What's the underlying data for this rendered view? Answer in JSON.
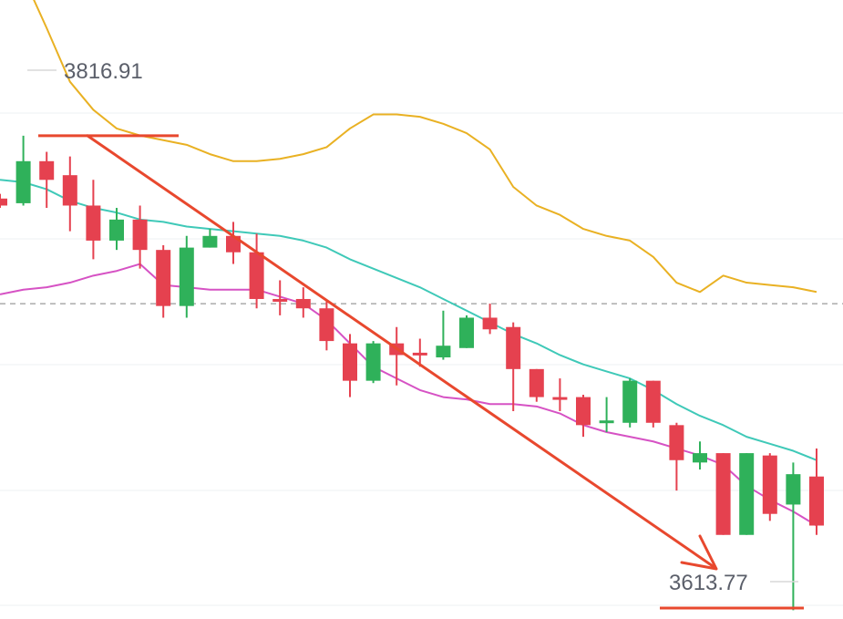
{
  "colors": {
    "up": "#2fb15a",
    "down": "#e5414f",
    "upper_band": "#e9b123",
    "middle_band": "#3fc9b8",
    "lower_band": "#d652c4",
    "annotation": "#e8482e",
    "grid": "#eef0f3",
    "current_price_line": "#9a9a9a",
    "label_text": "#5b5f6a"
  },
  "annotations": {
    "high_label": "3816.91",
    "low_label": "3613.77"
  },
  "chart_data": {
    "type": "candlestick",
    "title": "",
    "xlabel": "",
    "ylabel": "",
    "ylim": [
      3610,
      3875
    ],
    "grid": true,
    "current_price": 3745,
    "high": 3816.91,
    "low": 3613.77,
    "candles": [
      {
        "open": 3790,
        "close": 3787,
        "high": 3792,
        "low": 3786
      },
      {
        "open": 3788,
        "close": 3806,
        "high": 3816.91,
        "low": 3787
      },
      {
        "open": 3806,
        "close": 3798,
        "high": 3810,
        "low": 3786
      },
      {
        "open": 3800,
        "close": 3787,
        "high": 3808,
        "low": 3776
      },
      {
        "open": 3787,
        "close": 3772,
        "high": 3798,
        "low": 3764
      },
      {
        "open": 3772,
        "close": 3781,
        "high": 3786,
        "low": 3768
      },
      {
        "open": 3781,
        "close": 3768,
        "high": 3787,
        "low": 3760
      },
      {
        "open": 3768,
        "close": 3744,
        "high": 3770,
        "low": 3739
      },
      {
        "open": 3744,
        "close": 3769,
        "high": 3774,
        "low": 3739
      },
      {
        "open": 3769,
        "close": 3774,
        "high": 3777,
        "low": 3769
      },
      {
        "open": 3774,
        "close": 3767,
        "high": 3780,
        "low": 3762
      },
      {
        "open": 3767,
        "close": 3747,
        "high": 3775,
        "low": 3743
      },
      {
        "open": 3747,
        "close": 3746,
        "high": 3755,
        "low": 3740
      },
      {
        "open": 3747,
        "close": 3743,
        "high": 3752,
        "low": 3739
      },
      {
        "open": 3743,
        "close": 3729,
        "high": 3746,
        "low": 3725
      },
      {
        "open": 3728,
        "close": 3712,
        "high": 3732,
        "low": 3705
      },
      {
        "open": 3712,
        "close": 3728,
        "high": 3729,
        "low": 3711
      },
      {
        "open": 3728,
        "close": 3723,
        "high": 3735,
        "low": 3710
      },
      {
        "open": 3724,
        "close": 3723,
        "high": 3730,
        "low": 3718
      },
      {
        "open": 3722,
        "close": 3727,
        "high": 3742,
        "low": 3721
      },
      {
        "open": 3726,
        "close": 3739,
        "high": 3740,
        "low": 3726
      },
      {
        "open": 3739,
        "close": 3734,
        "high": 3745,
        "low": 3732
      },
      {
        "open": 3735,
        "close": 3717,
        "high": 3737,
        "low": 3699
      },
      {
        "open": 3717,
        "close": 3705,
        "high": 3717,
        "low": 3703
      },
      {
        "open": 3705,
        "close": 3704,
        "high": 3713,
        "low": 3699
      },
      {
        "open": 3705,
        "close": 3693,
        "high": 3706,
        "low": 3688
      },
      {
        "open": 3694,
        "close": 3695,
        "high": 3705,
        "low": 3690
      },
      {
        "open": 3694,
        "close": 3712,
        "high": 3713,
        "low": 3692
      },
      {
        "open": 3712,
        "close": 3694,
        "high": 3712,
        "low": 3692
      },
      {
        "open": 3693,
        "close": 3678,
        "high": 3694,
        "low": 3665
      },
      {
        "open": 3677,
        "close": 3681,
        "high": 3686,
        "low": 3674
      },
      {
        "open": 3681,
        "close": 3646,
        "high": 3681,
        "low": 3646
      },
      {
        "open": 3646,
        "close": 3681,
        "high": 3681,
        "low": 3646
      },
      {
        "open": 3680,
        "close": 3655,
        "high": 3681,
        "low": 3652
      },
      {
        "open": 3659,
        "close": 3672,
        "high": 3677,
        "low": 3613.77
      },
      {
        "open": 3671,
        "close": 3650,
        "high": 3683,
        "low": 3646
      }
    ],
    "upper_band": [
      3903,
      3885,
      3863,
      3840,
      3828,
      3820,
      3817,
      3815,
      3813,
      3809,
      3806,
      3806,
      3807,
      3809,
      3812,
      3820,
      3826,
      3826,
      3825,
      3822,
      3818,
      3811,
      3795,
      3787,
      3783,
      3777,
      3774,
      3772,
      3765,
      3754,
      3750,
      3757,
      3754,
      3753,
      3752,
      3750
    ],
    "middle_band": [
      3798,
      3797,
      3794,
      3789,
      3786,
      3784,
      3781,
      3780,
      3778,
      3777,
      3776,
      3775,
      3774,
      3772,
      3769,
      3764,
      3760,
      3756,
      3752,
      3747,
      3742,
      3737,
      3732,
      3728,
      3723,
      3719,
      3716,
      3713,
      3708,
      3702,
      3697,
      3693,
      3688,
      3685,
      3682,
      3678
    ],
    "lower_band": [
      3749,
      3751,
      3752,
      3754,
      3757,
      3759,
      3762,
      3753,
      3752,
      3751,
      3751,
      3751,
      3748,
      3745,
      3738,
      3728,
      3718,
      3713,
      3708,
      3705,
      3704,
      3702,
      3702,
      3701,
      3698,
      3693,
      3690,
      3688,
      3686,
      3683,
      3680,
      3676,
      3667,
      3661,
      3656,
      3650
    ]
  }
}
